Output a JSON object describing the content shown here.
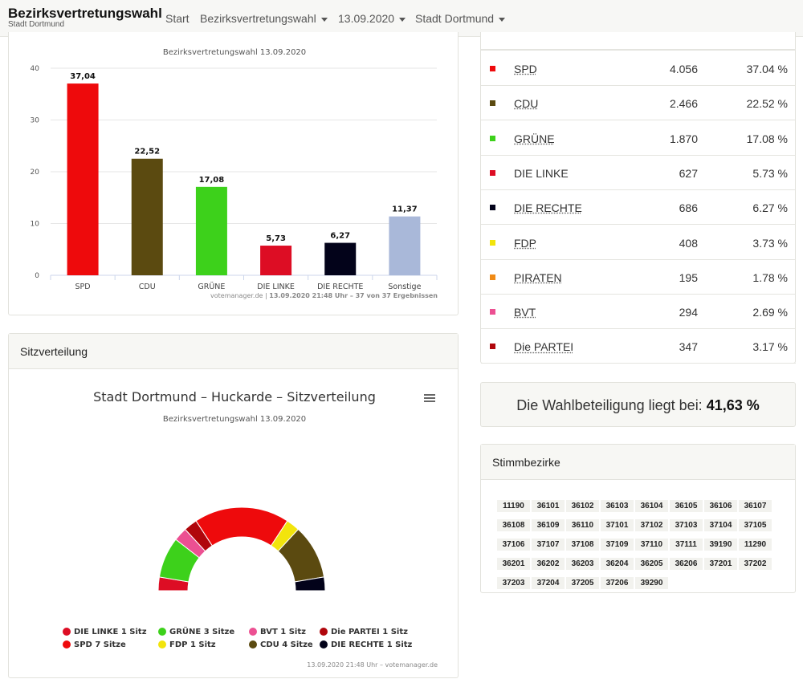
{
  "navbar": {
    "brand_title": "Bezirksvertretungswahl",
    "brand_sub": "Stadt Dortmund",
    "items": [
      {
        "label": "Start"
      },
      {
        "label": "Bezirksvertretungswahl"
      },
      {
        "label": "13.09.2020"
      },
      {
        "label": "Stadt Dortmund"
      }
    ]
  },
  "chart_data": [
    {
      "type": "bar",
      "subtitle": "Bezirksvertretungswahl 13.09.2020",
      "categories": [
        "SPD",
        "CDU",
        "GRÜNE",
        "DIE LINKE",
        "DIE RECHTE",
        "Sonstige"
      ],
      "values": [
        37.04,
        22.52,
        17.08,
        5.73,
        6.27,
        11.37
      ],
      "value_labels": [
        "37,04",
        "22,52",
        "17,08",
        "5,73",
        "6,27",
        "11,37"
      ],
      "colors": [
        "#ee0a0c",
        "#5b4a10",
        "#3dd11b",
        "#dd0d24",
        "#03031a",
        "#a9b8d9"
      ],
      "ylim": [
        0,
        40
      ],
      "yticks": [
        "0",
        "10",
        "20",
        "30",
        "40"
      ],
      "grid": true,
      "credits_source": "votemanager.de",
      "credits_detail": "13.09.2020 21:48 Uhr – 37 von 37 Ergebnissen"
    },
    {
      "type": "pie",
      "variant": "semicircle parliament",
      "title": "Stadt Dortmund – Huckarde – Sitzverteilung",
      "subtitle": "Bezirksvertretungswahl 13.09.2020",
      "slices": [
        {
          "name": "DIE LINKE",
          "seats": 1,
          "color": "#dd0d24"
        },
        {
          "name": "GRÜNE",
          "seats": 3,
          "color": "#3dd11b"
        },
        {
          "name": "BVT",
          "seats": 1,
          "color": "#ec5092"
        },
        {
          "name": "Die PARTEI",
          "seats": 1,
          "color": "#b0060c"
        },
        {
          "name": "SPD",
          "seats": 7,
          "color": "#ee0a0c"
        },
        {
          "name": "FDP",
          "seats": 1,
          "color": "#f2e40c"
        },
        {
          "name": "CDU",
          "seats": 4,
          "color": "#5b4a10"
        },
        {
          "name": "DIE RECHTE",
          "seats": 1,
          "color": "#03031a"
        }
      ],
      "legend": [
        {
          "label": "DIE LINKE 1 Sitz",
          "color": "#dd0d24"
        },
        {
          "label": "GRÜNE 3 Sitze",
          "color": "#3dd11b"
        },
        {
          "label": "BVT 1 Sitz",
          "color": "#ec5092"
        },
        {
          "label": "Die PARTEI 1 Sitz",
          "color": "#b0060c"
        },
        {
          "label": "SPD 7 Sitze",
          "color": "#ee0a0c"
        },
        {
          "label": "FDP 1 Sitz",
          "color": "#f2e40c"
        },
        {
          "label": "CDU 4 Sitze",
          "color": "#5b4a10"
        },
        {
          "label": "DIE RECHTE 1 Sitz",
          "color": "#03031a"
        }
      ],
      "credits": "13.09.2020 21:48 Uhr – votemanager.de"
    }
  ],
  "seats_card": {
    "header": "Sitzverteilung",
    "menu_icon": "hamburger-menu-icon"
  },
  "results_table": [
    {
      "party": "SPD",
      "votes": "4.056",
      "pct": "37.04 %",
      "color": "#ee0a0c",
      "linked": true
    },
    {
      "party": "CDU",
      "votes": "2.466",
      "pct": "22.52 %",
      "color": "#5b4a10",
      "linked": true
    },
    {
      "party": "GRÜNE",
      "votes": "1.870",
      "pct": "17.08 %",
      "color": "#3dd11b",
      "linked": true
    },
    {
      "party": "DIE LINKE",
      "votes": "627",
      "pct": "5.73 %",
      "color": "#dd0d24",
      "linked": false
    },
    {
      "party": "DIE RECHTE",
      "votes": "686",
      "pct": "6.27 %",
      "color": "#03031a",
      "linked": true
    },
    {
      "party": "FDP",
      "votes": "408",
      "pct": "3.73 %",
      "color": "#f2e40c",
      "linked": true
    },
    {
      "party": "PIRATEN",
      "votes": "195",
      "pct": "1.78 %",
      "color": "#f08a16",
      "linked": true
    },
    {
      "party": "BVT",
      "votes": "294",
      "pct": "2.69 %",
      "color": "#ec5092",
      "linked": true
    },
    {
      "party": "Die PARTEI",
      "votes": "347",
      "pct": "3.17 %",
      "color": "#b0060c",
      "linked": true
    }
  ],
  "turnout": {
    "label": "Die Wahlbeteiligung liegt bei:",
    "value": "41,63 %"
  },
  "stimmbezirke": {
    "header": "Stimmbezirke",
    "ids": [
      "11190",
      "36101",
      "36102",
      "36103",
      "36104",
      "36105",
      "36106",
      "36107",
      "36108",
      "36109",
      "36110",
      "37101",
      "37102",
      "37103",
      "37104",
      "37105",
      "37106",
      "37107",
      "37108",
      "37109",
      "37110",
      "37111",
      "39190",
      "11290",
      "36201",
      "36202",
      "36203",
      "36204",
      "36205",
      "36206",
      "37201",
      "37202",
      "37203",
      "37204",
      "37205",
      "37206",
      "39290"
    ]
  }
}
